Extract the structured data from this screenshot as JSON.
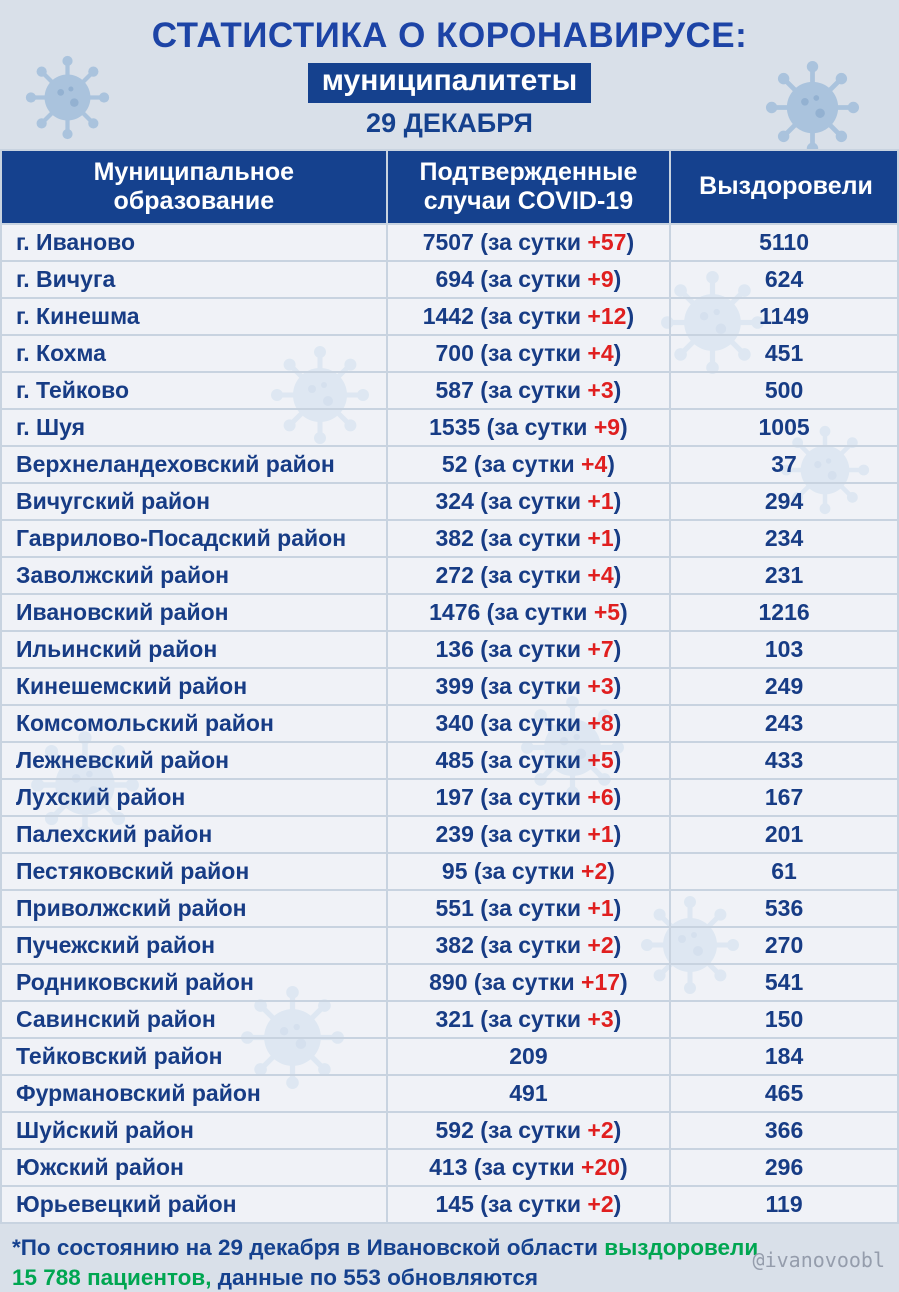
{
  "header": {
    "title": "СТАТИСТИКА О КОРОНАВИРУСЕ:",
    "subtitle": "муниципалитеты",
    "date": "29 ДЕКАБРЯ"
  },
  "chart_data": {
    "type": "table",
    "title": "Статистика о коронавирусе: муниципалитеты, 29 декабря",
    "columns": [
      "Муниципальное образование",
      "Подтвержденные случаи COVID-19",
      "Выздоровели"
    ],
    "daily_prefix": " (за сутки ",
    "daily_suffix": ")",
    "rows": [
      {
        "name": "г. Иваново",
        "confirmed": "7507",
        "daily": "+57",
        "recovered": "5110"
      },
      {
        "name": "г. Вичуга",
        "confirmed": "694",
        "daily": "+9",
        "recovered": "624"
      },
      {
        "name": "г. Кинешма",
        "confirmed": "1442",
        "daily": "+12",
        "recovered": "1149"
      },
      {
        "name": "г. Кохма",
        "confirmed": "700",
        "daily": "+4",
        "recovered": "451"
      },
      {
        "name": "г. Тейково",
        "confirmed": "587",
        "daily": "+3",
        "recovered": "500"
      },
      {
        "name": "г. Шуя",
        "confirmed": "1535",
        "daily": "+9",
        "recovered": "1005"
      },
      {
        "name": "Верхнеландеховский район",
        "confirmed": "52",
        "daily": "+4",
        "recovered": "37"
      },
      {
        "name": "Вичугский район",
        "confirmed": "324",
        "daily": "+1",
        "recovered": "294"
      },
      {
        "name": "Гаврилово-Посадский район",
        "confirmed": "382",
        "daily": "+1",
        "recovered": "234"
      },
      {
        "name": "Заволжский район",
        "confirmed": "272",
        "daily": "+4",
        "recovered": "231"
      },
      {
        "name": "Ивановский район",
        "confirmed": "1476",
        "daily": "+5",
        "recovered": "1216"
      },
      {
        "name": "Ильинский район",
        "confirmed": "136",
        "daily": "+7",
        "recovered": "103"
      },
      {
        "name": "Кинешемский район",
        "confirmed": "399",
        "daily": "+3",
        "recovered": "249"
      },
      {
        "name": "Комсомольский район",
        "confirmed": "340",
        "daily": "+8",
        "recovered": "243"
      },
      {
        "name": "Лежневский район",
        "confirmed": "485",
        "daily": "+5",
        "recovered": "433"
      },
      {
        "name": "Лухский район",
        "confirmed": "197",
        "daily": "+6",
        "recovered": "167"
      },
      {
        "name": "Палехский район",
        "confirmed": "239",
        "daily": "+1",
        "recovered": "201"
      },
      {
        "name": "Пестяковский район",
        "confirmed": "95",
        "daily": "+2",
        "recovered": "61"
      },
      {
        "name": "Приволжский район",
        "confirmed": "551",
        "daily": "+1",
        "recovered": "536"
      },
      {
        "name": "Пучежский район",
        "confirmed": "382",
        "daily": "+2",
        "recovered": "270"
      },
      {
        "name": "Родниковский район",
        "confirmed": "890",
        "daily": "+17",
        "recovered": "541"
      },
      {
        "name": "Савинский район",
        "confirmed": "321",
        "daily": "+3",
        "recovered": "150"
      },
      {
        "name": "Тейковский район",
        "confirmed": "209",
        "daily": null,
        "recovered": "184"
      },
      {
        "name": "Фурмановский район",
        "confirmed": "491",
        "daily": null,
        "recovered": "465"
      },
      {
        "name": "Шуйский район",
        "confirmed": "592",
        "daily": "+2",
        "recovered": "366"
      },
      {
        "name": "Южский район",
        "confirmed": "413",
        "daily": "+20",
        "recovered": "296"
      },
      {
        "name": "Юрьевецкий район",
        "confirmed": "145",
        "daily": "+2",
        "recovered": "119"
      }
    ]
  },
  "footer": {
    "lines": [
      [
        {
          "text": "*По состоянию на 29 декабря в Ивановской области ",
          "color": "blue"
        },
        {
          "text": "выздоровели",
          "color": "green"
        }
      ],
      [
        {
          "text": "15 788 пациентов,",
          "color": "green"
        },
        {
          "text": " данные по 553 обновляются",
          "color": "blue"
        }
      ]
    ],
    "watermark": "@ivanovoobl"
  },
  "icons": {
    "virus": "coronavirus-decoration"
  },
  "colors": {
    "background": "#d9e0e9",
    "title_blue": "#1d44a6",
    "header_bg": "#15418e",
    "text_navy": "#173c85",
    "accent_red": "#e01f1f",
    "accent_green": "#00a651",
    "watermark_gray": "#959dac",
    "virus_blue": "#aac3dd"
  }
}
